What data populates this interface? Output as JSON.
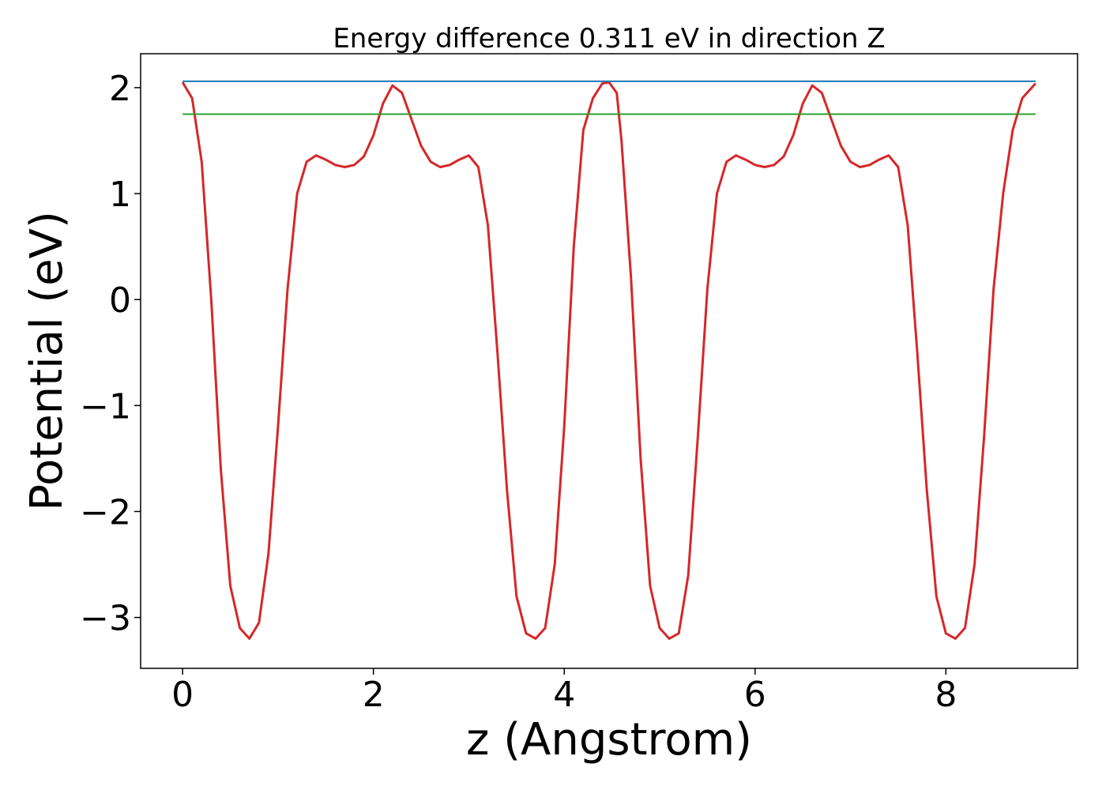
{
  "chart_data": {
    "type": "line",
    "title": "Energy difference 0.311 eV in direction Z",
    "xlabel": "z (Angstrom)",
    "ylabel": "Potential (eV)",
    "xlim": [
      -0.44,
      9.38
    ],
    "ylim": [
      -3.48,
      2.32
    ],
    "grid": false,
    "xticks": [
      0,
      2,
      4,
      6,
      8
    ],
    "xtick_labels": [
      "0",
      "2",
      "4",
      "6",
      "8"
    ],
    "yticks": [
      -3,
      -2,
      -1,
      0,
      1,
      2
    ],
    "ytick_labels": [
      "−3",
      "−2",
      "−1",
      "0",
      "1",
      "2"
    ],
    "series": [
      {
        "color": "#d62728",
        "x": [
          0.0,
          0.1,
          0.2,
          0.3,
          0.4,
          0.5,
          0.6,
          0.7,
          0.8,
          0.9,
          1.0,
          1.1,
          1.2,
          1.3,
          1.4,
          1.5,
          1.6,
          1.7,
          1.8,
          1.9,
          2.0,
          2.1,
          2.2,
          2.3,
          2.4,
          2.5,
          2.6,
          2.7,
          2.8,
          2.9,
          3.0,
          3.1,
          3.2,
          3.3,
          3.4,
          3.5,
          3.6,
          3.7,
          3.8,
          3.9,
          4.0,
          4.1,
          4.2,
          4.3,
          4.4,
          4.47,
          4.55,
          4.6,
          4.7,
          4.8,
          4.9,
          5.0,
          5.1,
          5.2,
          5.3,
          5.4,
          5.5,
          5.6,
          5.7,
          5.8,
          5.9,
          6.0,
          6.1,
          6.2,
          6.3,
          6.4,
          6.5,
          6.6,
          6.7,
          6.8,
          6.9,
          7.0,
          7.1,
          7.2,
          7.3,
          7.4,
          7.5,
          7.6,
          7.7,
          7.8,
          7.9,
          8.0,
          8.1,
          8.2,
          8.3,
          8.4,
          8.5,
          8.6,
          8.7,
          8.8,
          8.94
        ],
        "y": [
          2.05,
          1.9,
          1.3,
          0.0,
          -1.6,
          -2.7,
          -3.1,
          -3.2,
          -3.05,
          -2.4,
          -1.2,
          0.1,
          1.0,
          1.3,
          1.36,
          1.32,
          1.27,
          1.25,
          1.27,
          1.35,
          1.55,
          1.85,
          2.02,
          1.95,
          1.7,
          1.45,
          1.3,
          1.25,
          1.27,
          1.32,
          1.36,
          1.25,
          0.7,
          -0.5,
          -1.8,
          -2.8,
          -3.15,
          -3.2,
          -3.1,
          -2.5,
          -1.2,
          0.5,
          1.6,
          1.9,
          2.04,
          2.05,
          1.95,
          1.5,
          0.2,
          -1.5,
          -2.7,
          -3.1,
          -3.2,
          -3.15,
          -2.6,
          -1.3,
          0.1,
          1.0,
          1.3,
          1.36,
          1.32,
          1.27,
          1.25,
          1.27,
          1.35,
          1.55,
          1.85,
          2.02,
          1.95,
          1.7,
          1.45,
          1.3,
          1.25,
          1.27,
          1.32,
          1.36,
          1.25,
          0.7,
          -0.5,
          -1.8,
          -2.8,
          -3.15,
          -3.2,
          -3.1,
          -2.5,
          -1.3,
          0.1,
          1.0,
          1.6,
          1.9,
          2.04
        ]
      },
      {
        "color": "#1f77b4",
        "x": [
          0.0,
          8.94
        ],
        "y": [
          2.06,
          2.06
        ]
      },
      {
        "color": "#2ca02c",
        "x": [
          0.0,
          8.94
        ],
        "y": [
          1.75,
          1.75
        ]
      }
    ]
  }
}
